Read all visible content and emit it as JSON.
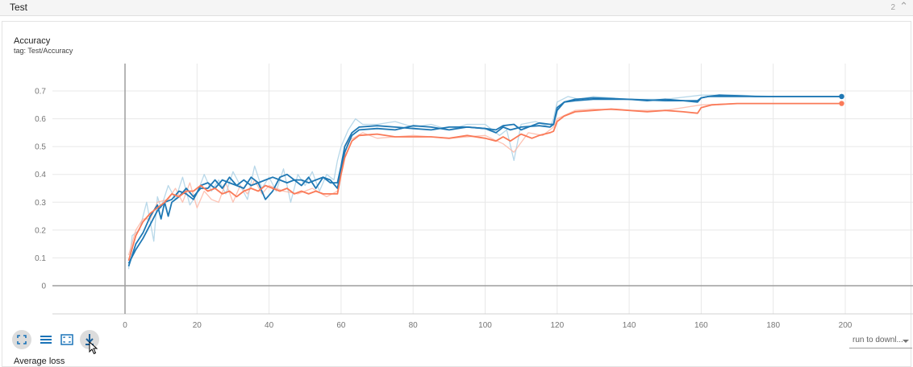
{
  "section": {
    "title": "Test",
    "count": "2"
  },
  "card": {
    "title": "Accuracy",
    "subtitle": "tag: Test/Accuracy"
  },
  "toolbar": {
    "buttons": [
      {
        "name": "fit-domain-button",
        "icon": "fullscreen-icon"
      },
      {
        "name": "toggle-log-button",
        "icon": "lines-icon"
      },
      {
        "name": "expand-chart-button",
        "icon": "expand-icon"
      },
      {
        "name": "download-button",
        "icon": "download-icon"
      }
    ]
  },
  "run_select": {
    "label": "run to downl..."
  },
  "next_card": {
    "title": "Average loss"
  },
  "chart_data": {
    "type": "line",
    "title": "Accuracy",
    "xlabel": "",
    "ylabel": "",
    "xlim": [
      -20,
      200
    ],
    "ylim": [
      -0.1,
      0.78
    ],
    "x_ticks": [
      0,
      20,
      40,
      60,
      80,
      100,
      120,
      140,
      160,
      180,
      200
    ],
    "y_ticks": [
      0,
      0.1,
      0.2,
      0.3,
      0.4,
      0.5,
      0.6,
      0.7
    ],
    "grid": true,
    "colors": {
      "blue": "#1f78b4",
      "orange": "#fa7a58",
      "blue_raw": "#a6cee3",
      "orange_raw": "#fcb3a0",
      "axis": "#9e9e9e",
      "grid": "#e8e8e8"
    },
    "series": [
      {
        "color": "blue",
        "x": [
          1,
          3,
          5,
          7,
          9,
          10,
          11,
          13,
          15,
          17,
          19,
          21,
          23,
          25,
          27,
          29,
          31,
          33,
          35,
          37,
          39,
          41,
          43,
          45,
          47,
          49,
          51,
          53,
          55,
          57,
          59,
          60,
          61,
          63,
          65,
          70,
          75,
          80,
          85,
          90,
          95,
          100,
          103,
          105,
          107,
          110,
          115,
          118,
          119,
          120,
          122,
          125,
          130,
          135,
          140,
          145,
          150,
          155,
          159,
          160,
          162,
          165,
          170,
          180,
          190,
          199
        ],
        "y": [
          0.07,
          0.15,
          0.19,
          0.25,
          0.29,
          0.24,
          0.3,
          0.31,
          0.34,
          0.33,
          0.31,
          0.36,
          0.37,
          0.35,
          0.38,
          0.37,
          0.36,
          0.38,
          0.36,
          0.37,
          0.38,
          0.39,
          0.38,
          0.37,
          0.38,
          0.38,
          0.37,
          0.38,
          0.39,
          0.37,
          0.37,
          0.43,
          0.5,
          0.55,
          0.57,
          0.575,
          0.57,
          0.565,
          0.56,
          0.57,
          0.57,
          0.565,
          0.55,
          0.57,
          0.56,
          0.57,
          0.575,
          0.57,
          0.58,
          0.64,
          0.66,
          0.665,
          0.67,
          0.67,
          0.67,
          0.665,
          0.67,
          0.665,
          0.66,
          0.675,
          0.68,
          0.68,
          0.68,
          0.68,
          0.68,
          0.68
        ]
      },
      {
        "color": "blue",
        "x": [
          1,
          3,
          5,
          7,
          9,
          11,
          12,
          13,
          15,
          17,
          19,
          21,
          23,
          25,
          27,
          29,
          31,
          33,
          35,
          37,
          39,
          41,
          43,
          45,
          47,
          49,
          51,
          53,
          55,
          57,
          59,
          60,
          61,
          63,
          65,
          70,
          75,
          80,
          85,
          90,
          95,
          100,
          103,
          105,
          108,
          110,
          113,
          115,
          118,
          119,
          120,
          122,
          125,
          130,
          140,
          150,
          159,
          160,
          162,
          165,
          175,
          190,
          199
        ],
        "y": [
          0.08,
          0.13,
          0.17,
          0.22,
          0.27,
          0.3,
          0.25,
          0.3,
          0.32,
          0.35,
          0.32,
          0.35,
          0.35,
          0.38,
          0.35,
          0.39,
          0.36,
          0.35,
          0.39,
          0.37,
          0.31,
          0.34,
          0.39,
          0.4,
          0.38,
          0.36,
          0.39,
          0.35,
          0.39,
          0.38,
          0.35,
          0.42,
          0.48,
          0.54,
          0.56,
          0.565,
          0.56,
          0.575,
          0.57,
          0.56,
          0.57,
          0.565,
          0.56,
          0.575,
          0.58,
          0.56,
          0.575,
          0.585,
          0.58,
          0.58,
          0.63,
          0.66,
          0.67,
          0.675,
          0.67,
          0.665,
          0.665,
          0.675,
          0.68,
          0.685,
          0.68,
          0.68,
          0.68
        ]
      },
      {
        "color": "orange",
        "x": [
          1,
          3,
          5,
          7,
          9,
          11,
          13,
          15,
          17,
          19,
          21,
          23,
          25,
          27,
          29,
          31,
          33,
          35,
          37,
          39,
          41,
          43,
          45,
          47,
          49,
          51,
          53,
          55,
          57,
          59,
          60,
          61,
          63,
          65,
          70,
          75,
          80,
          85,
          90,
          95,
          100,
          103,
          105,
          107,
          110,
          113,
          115,
          118,
          119,
          120,
          122,
          125,
          130,
          135,
          140,
          145,
          150,
          155,
          159,
          160,
          163,
          170,
          180,
          190,
          196,
          199
        ],
        "y": [
          0.09,
          0.18,
          0.23,
          0.26,
          0.28,
          0.3,
          0.33,
          0.32,
          0.34,
          0.34,
          0.36,
          0.34,
          0.35,
          0.33,
          0.34,
          0.32,
          0.34,
          0.35,
          0.34,
          0.36,
          0.35,
          0.34,
          0.35,
          0.33,
          0.34,
          0.33,
          0.34,
          0.33,
          0.33,
          0.33,
          0.4,
          0.46,
          0.52,
          0.54,
          0.545,
          0.535,
          0.535,
          0.535,
          0.53,
          0.54,
          0.53,
          0.52,
          0.535,
          0.52,
          0.545,
          0.53,
          0.54,
          0.55,
          0.555,
          0.59,
          0.61,
          0.625,
          0.63,
          0.635,
          0.63,
          0.625,
          0.63,
          0.625,
          0.62,
          0.64,
          0.65,
          0.655,
          0.655,
          0.655,
          0.655,
          0.655
        ]
      }
    ],
    "raw_series": [
      {
        "color": "blue_raw",
        "x": [
          1,
          2,
          4,
          6,
          8,
          9,
          10,
          12,
          14,
          16,
          18,
          20,
          22,
          24,
          26,
          28,
          30,
          32,
          34,
          36,
          38,
          40,
          42,
          44,
          46,
          48,
          50,
          52,
          54,
          56,
          58,
          59,
          60,
          62,
          64,
          66,
          70,
          75,
          80,
          85,
          90,
          95,
          100,
          104,
          106,
          108,
          110,
          114,
          118,
          119,
          120,
          123,
          126,
          130,
          140,
          150,
          160,
          170,
          180,
          199
        ],
        "y": [
          0.06,
          0.18,
          0.2,
          0.3,
          0.16,
          0.32,
          0.28,
          0.36,
          0.31,
          0.39,
          0.29,
          0.33,
          0.4,
          0.34,
          0.38,
          0.33,
          0.41,
          0.36,
          0.31,
          0.43,
          0.35,
          0.39,
          0.34,
          0.42,
          0.3,
          0.4,
          0.36,
          0.41,
          0.34,
          0.4,
          0.38,
          0.45,
          0.5,
          0.56,
          0.6,
          0.58,
          0.58,
          0.59,
          0.57,
          0.58,
          0.56,
          0.58,
          0.58,
          0.54,
          0.56,
          0.45,
          0.58,
          0.59,
          0.57,
          0.6,
          0.66,
          0.68,
          0.67,
          0.68,
          0.67,
          0.67,
          0.685,
          0.685,
          0.68,
          0.68
        ]
      },
      {
        "color": "orange_raw",
        "x": [
          1,
          3,
          5,
          7,
          9,
          12,
          14,
          16,
          18,
          20,
          22,
          24,
          26,
          28,
          30,
          32,
          34,
          36,
          38,
          40,
          44,
          48,
          52,
          56,
          59,
          60,
          62,
          66,
          70,
          80,
          90,
          100,
          105,
          108,
          112,
          116,
          119,
          120,
          125,
          130,
          140,
          150,
          160,
          170,
          180,
          199
        ],
        "y": [
          0.11,
          0.2,
          0.24,
          0.24,
          0.3,
          0.31,
          0.35,
          0.3,
          0.37,
          0.28,
          0.34,
          0.31,
          0.3,
          0.37,
          0.3,
          0.36,
          0.33,
          0.38,
          0.33,
          0.36,
          0.34,
          0.33,
          0.35,
          0.32,
          0.34,
          0.42,
          0.52,
          0.55,
          0.53,
          0.54,
          0.53,
          0.54,
          0.51,
          0.48,
          0.55,
          0.54,
          0.57,
          0.6,
          0.63,
          0.635,
          0.63,
          0.63,
          0.65,
          0.655,
          0.655,
          0.655
        ]
      }
    ]
  }
}
